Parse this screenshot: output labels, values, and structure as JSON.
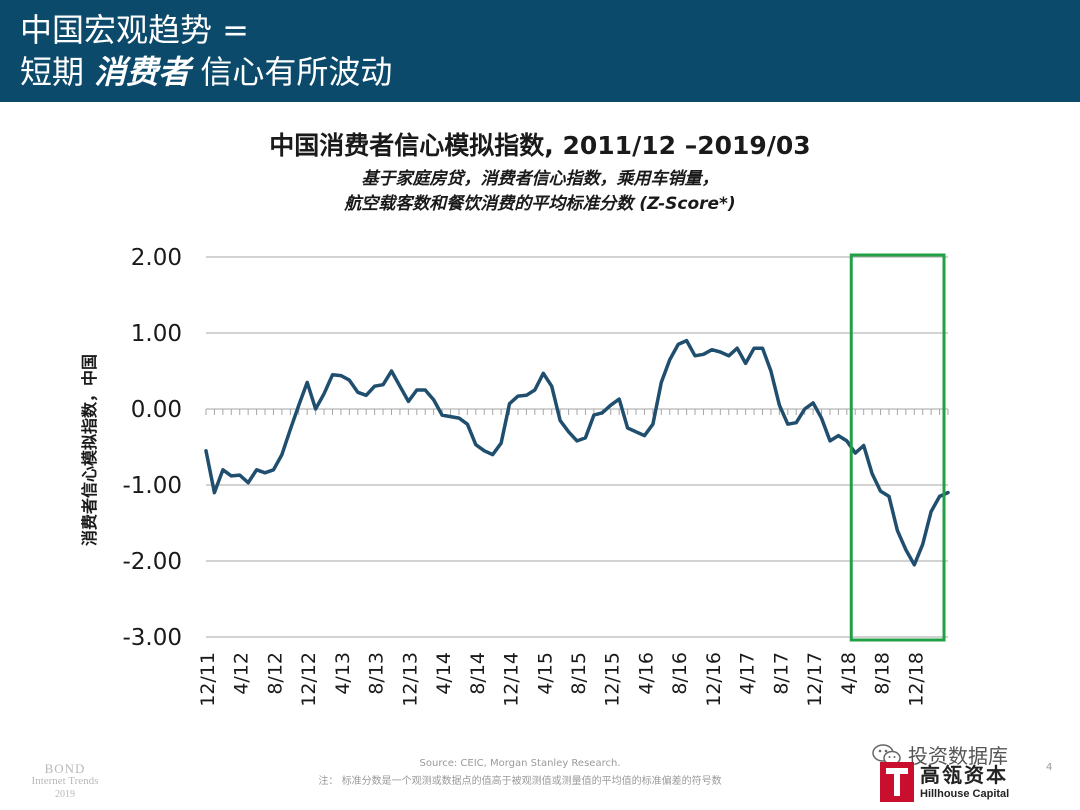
{
  "header": {
    "line1": "中国宏观趋势 =",
    "line2_pre": "短期",
    "line2_emph": "消费者",
    "line2_post": "信心有所波动"
  },
  "chart_data": {
    "type": "line",
    "title": "中国消费者信心模拟指数, 2011/12 –2019/03",
    "subtitle_1": "基于家庭房贷，消费者信心指数，乘用车销量，",
    "subtitle_2": "航空载客数和餐饮消费的平均标准分数 (Z-Score*)",
    "ylabel": "消费者信心模拟指数，中国",
    "ylim": [
      -3.0,
      2.0
    ],
    "yticks": [
      2.0,
      1.0,
      0.0,
      -1.0,
      -2.0,
      -3.0
    ],
    "ytick_labels": [
      "2.00",
      "1.00",
      "0.00",
      "-1.00",
      "-2.00",
      "-3.00"
    ],
    "x_start": "2011/12",
    "x_end": "2019/03",
    "xtick_labels": [
      "12/11",
      "4/12",
      "8/12",
      "12/12",
      "4/13",
      "8/13",
      "12/13",
      "4/14",
      "8/14",
      "12/14",
      "4/15",
      "8/15",
      "12/15",
      "4/16",
      "8/16",
      "12/16",
      "4/17",
      "8/17",
      "12/17",
      "4/18",
      "8/18",
      "12/18"
    ],
    "xtick_month_index": [
      0,
      4,
      8,
      12,
      16,
      20,
      24,
      28,
      32,
      36,
      40,
      44,
      48,
      52,
      56,
      60,
      64,
      68,
      72,
      76,
      80,
      84
    ],
    "series": [
      {
        "name": "消费者信心模拟指数",
        "color": "#1f4e6e",
        "values": [
          -0.55,
          -1.1,
          -0.8,
          -0.88,
          -0.87,
          -0.97,
          -0.8,
          -0.84,
          -0.8,
          -0.6,
          -0.27,
          0.05,
          0.35,
          0.0,
          0.2,
          0.45,
          0.44,
          0.38,
          0.22,
          0.18,
          0.3,
          0.32,
          0.5,
          0.3,
          0.1,
          0.25,
          0.25,
          0.12,
          -0.08,
          -0.1,
          -0.12,
          -0.2,
          -0.47,
          -0.55,
          -0.6,
          -0.45,
          0.07,
          0.17,
          0.18,
          0.25,
          0.47,
          0.3,
          -0.15,
          -0.3,
          -0.42,
          -0.38,
          -0.08,
          -0.05,
          0.05,
          0.13,
          -0.25,
          -0.3,
          -0.35,
          -0.2,
          0.35,
          0.65,
          0.85,
          0.9,
          0.7,
          0.72,
          0.78,
          0.75,
          0.7,
          0.8,
          0.6,
          0.8,
          0.8,
          0.5,
          0.05,
          -0.2,
          -0.18,
          0.0,
          0.08,
          -0.12,
          -0.42,
          -0.35,
          -0.42,
          -0.58,
          -0.48,
          -0.85,
          -1.08,
          -1.15,
          -1.6,
          -1.85,
          -2.05,
          -1.78,
          -1.35,
          -1.15,
          -1.1
        ]
      }
    ],
    "highlight": {
      "from": "2018/05",
      "to": "2019/03",
      "color": "#22a045"
    }
  },
  "footer": {
    "bond_line1": "BOND",
    "bond_line2": "Internet Trends",
    "bond_line3": "2019",
    "source": "Source: CEIC, Morgan Stanley Research.",
    "note": "注： 标准分数是一个观测或数据点的值高于被观测值或测量值的平均值的标准偏差的符号数",
    "page_number": "4",
    "watermark": "投资数据库",
    "logo_cn": "高瓴资本",
    "logo_en": "Hillhouse Capital"
  }
}
